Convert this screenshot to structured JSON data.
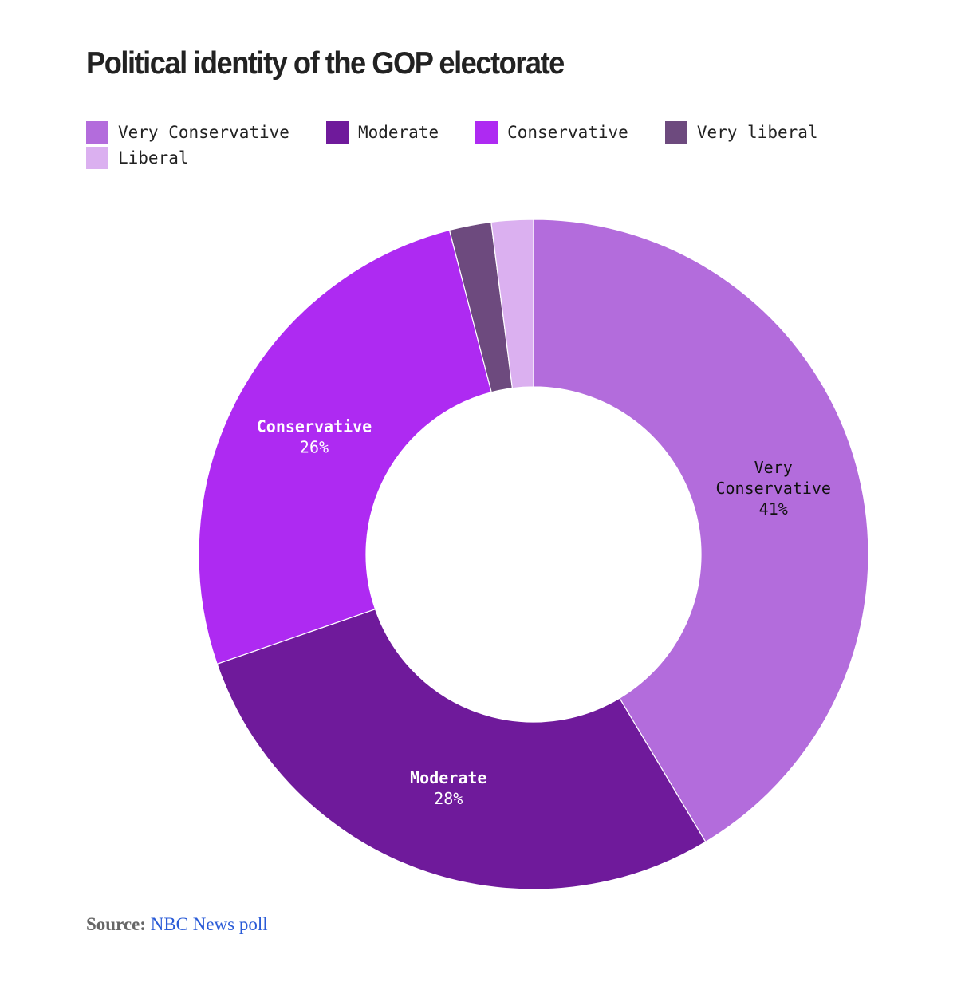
{
  "chart_data": {
    "type": "pie",
    "style": "donut",
    "title": "Political identity of the GOP electorate",
    "series": [
      {
        "name": "Very Conservative",
        "label_lines": [
          "Very",
          "Conservative"
        ],
        "value": 41,
        "value_label": "41%",
        "color": "#b36cdc",
        "label_color": "#111111"
      },
      {
        "name": "Moderate",
        "label_lines": [
          "Moderate"
        ],
        "value": 28,
        "value_label": "28%",
        "color": "#6f1a9b",
        "label_color": "#ffffff"
      },
      {
        "name": "Conservative",
        "label_lines": [
          "Conservative"
        ],
        "value": 26,
        "value_label": "26%",
        "color": "#ae2af2",
        "label_color": "#ffffff"
      },
      {
        "name": "Very liberal",
        "label_lines": [],
        "value": 2,
        "value_label": "",
        "color": "#6d4a7e",
        "label_color": "#ffffff"
      },
      {
        "name": "Liberal",
        "label_lines": [],
        "value": 2,
        "value_label": "",
        "color": "#dbb0f0",
        "label_color": "#111111"
      }
    ],
    "legend_position": "top-left"
  },
  "source": {
    "label": "Source:",
    "text": "NBC News poll"
  }
}
